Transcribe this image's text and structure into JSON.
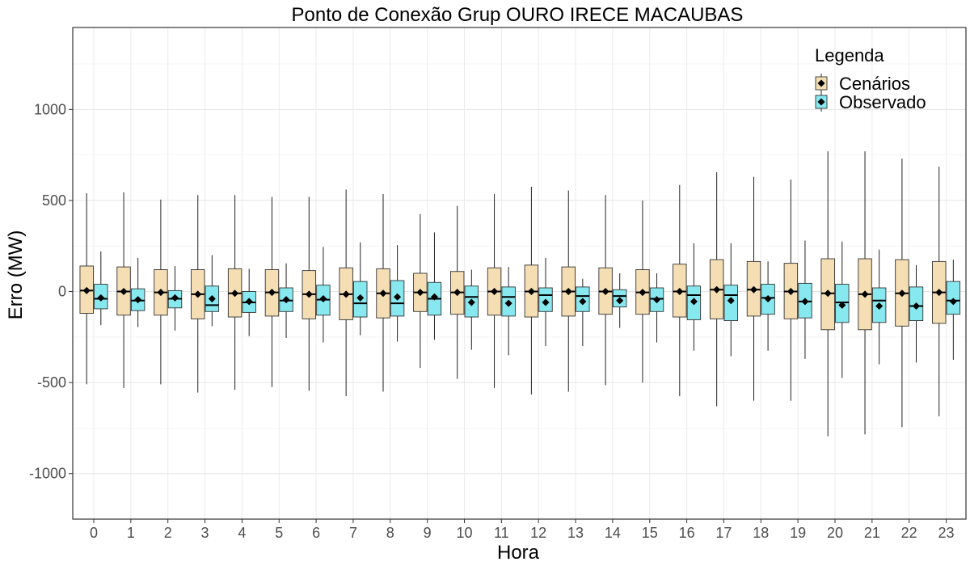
{
  "chart_data": {
    "type": "boxplot",
    "title": "Ponto de Conexão Grup OURO IRECE MACAUBAS",
    "xlabel": "Hora",
    "ylabel": "Erro (MW)",
    "ylim": [
      -1250,
      1450
    ],
    "yticks": [
      -1000,
      -500,
      0,
      500,
      1000
    ],
    "categories": [
      "0",
      "1",
      "2",
      "3",
      "4",
      "5",
      "6",
      "7",
      "8",
      "9",
      "10",
      "11",
      "12",
      "13",
      "14",
      "15",
      "16",
      "17",
      "18",
      "19",
      "20",
      "21",
      "22",
      "23"
    ],
    "grid": true,
    "legend": {
      "title": "Legenda",
      "position": "top-right",
      "entries": [
        "Cenários",
        "Observado"
      ]
    },
    "series": [
      {
        "name": "Cenários",
        "color": "#f5deb3",
        "boxes": [
          {
            "whisker_low": -510,
            "q1": -120,
            "median": 5,
            "q3": 140,
            "whisker_high": 540,
            "mean": 5
          },
          {
            "whisker_low": -530,
            "q1": -130,
            "median": 0,
            "q3": 135,
            "whisker_high": 545,
            "mean": 0
          },
          {
            "whisker_low": -510,
            "q1": -130,
            "median": -5,
            "q3": 120,
            "whisker_high": 505,
            "mean": -5
          },
          {
            "whisker_low": -555,
            "q1": -150,
            "median": -15,
            "q3": 120,
            "whisker_high": 530,
            "mean": -15
          },
          {
            "whisker_low": -540,
            "q1": -140,
            "median": -10,
            "q3": 125,
            "whisker_high": 530,
            "mean": -10
          },
          {
            "whisker_low": -525,
            "q1": -135,
            "median": -5,
            "q3": 120,
            "whisker_high": 520,
            "mean": -5
          },
          {
            "whisker_low": -545,
            "q1": -150,
            "median": -15,
            "q3": 115,
            "whisker_high": 520,
            "mean": -15
          },
          {
            "whisker_low": -575,
            "q1": -155,
            "median": -15,
            "q3": 130,
            "whisker_high": 560,
            "mean": -15
          },
          {
            "whisker_low": -550,
            "q1": -145,
            "median": -10,
            "q3": 125,
            "whisker_high": 535,
            "mean": -10
          },
          {
            "whisker_low": -420,
            "q1": -110,
            "median": -5,
            "q3": 100,
            "whisker_high": 425,
            "mean": -5
          },
          {
            "whisker_low": -480,
            "q1": -125,
            "median": -5,
            "q3": 110,
            "whisker_high": 470,
            "mean": -5
          },
          {
            "whisker_low": -530,
            "q1": -130,
            "median": 0,
            "q3": 130,
            "whisker_high": 535,
            "mean": 0
          },
          {
            "whisker_low": -565,
            "q1": -140,
            "median": 0,
            "q3": 145,
            "whisker_high": 575,
            "mean": 0
          },
          {
            "whisker_low": -550,
            "q1": -135,
            "median": 0,
            "q3": 135,
            "whisker_high": 555,
            "mean": 0
          },
          {
            "whisker_low": -515,
            "q1": -125,
            "median": 0,
            "q3": 130,
            "whisker_high": 530,
            "mean": 0
          },
          {
            "whisker_low": -500,
            "q1": -125,
            "median": -5,
            "q3": 120,
            "whisker_high": 500,
            "mean": -5
          },
          {
            "whisker_low": -575,
            "q1": -140,
            "median": 0,
            "q3": 150,
            "whisker_high": 585,
            "mean": 0
          },
          {
            "whisker_low": -630,
            "q1": -150,
            "median": 10,
            "q3": 175,
            "whisker_high": 655,
            "mean": 10
          },
          {
            "whisker_low": -600,
            "q1": -135,
            "median": 10,
            "q3": 165,
            "whisker_high": 630,
            "mean": 10
          },
          {
            "whisker_low": -600,
            "q1": -150,
            "median": 0,
            "q3": 155,
            "whisker_high": 615,
            "mean": 0
          },
          {
            "whisker_low": -795,
            "q1": -210,
            "median": -10,
            "q3": 180,
            "whisker_high": 770,
            "mean": -10
          },
          {
            "whisker_low": -785,
            "q1": -210,
            "median": -15,
            "q3": 180,
            "whisker_high": 770,
            "mean": -15
          },
          {
            "whisker_low": -745,
            "q1": -190,
            "median": -10,
            "q3": 175,
            "whisker_high": 730,
            "mean": -10
          },
          {
            "whisker_low": -685,
            "q1": -175,
            "median": -5,
            "q3": 165,
            "whisker_high": 685,
            "mean": -5
          }
        ]
      },
      {
        "name": "Observado",
        "color": "#87e8ef",
        "boxes": [
          {
            "whisker_low": -185,
            "q1": -95,
            "median": -40,
            "q3": 40,
            "whisker_high": 220,
            "mean": -35
          },
          {
            "whisker_low": -195,
            "q1": -105,
            "median": -50,
            "q3": 15,
            "whisker_high": 185,
            "mean": -45
          },
          {
            "whisker_low": -215,
            "q1": -90,
            "median": -40,
            "q3": 5,
            "whisker_high": 140,
            "mean": -35
          },
          {
            "whisker_low": -190,
            "q1": -110,
            "median": -75,
            "q3": 30,
            "whisker_high": 200,
            "mean": -40
          },
          {
            "whisker_low": -245,
            "q1": -115,
            "median": -60,
            "q3": 0,
            "whisker_high": 125,
            "mean": -55
          },
          {
            "whisker_low": -255,
            "q1": -110,
            "median": -50,
            "q3": 20,
            "whisker_high": 155,
            "mean": -45
          },
          {
            "whisker_low": -280,
            "q1": -130,
            "median": -45,
            "q3": 35,
            "whisker_high": 245,
            "mean": -40
          },
          {
            "whisker_low": -240,
            "q1": -140,
            "median": -65,
            "q3": 55,
            "whisker_high": 270,
            "mean": -35
          },
          {
            "whisker_low": -275,
            "q1": -135,
            "median": -65,
            "q3": 60,
            "whisker_high": 255,
            "mean": -30
          },
          {
            "whisker_low": -265,
            "q1": -130,
            "median": -40,
            "q3": 50,
            "whisker_high": 325,
            "mean": -30
          },
          {
            "whisker_low": -320,
            "q1": -140,
            "median": -30,
            "q3": 30,
            "whisker_high": 120,
            "mean": -60
          },
          {
            "whisker_low": -350,
            "q1": -135,
            "median": -30,
            "q3": 25,
            "whisker_high": 135,
            "mean": -65
          },
          {
            "whisker_low": -300,
            "q1": -110,
            "median": -20,
            "q3": 20,
            "whisker_high": 185,
            "mean": -60
          },
          {
            "whisker_low": -300,
            "q1": -110,
            "median": -25,
            "q3": 25,
            "whisker_high": 70,
            "mean": -55
          },
          {
            "whisker_low": -200,
            "q1": -85,
            "median": -25,
            "q3": 10,
            "whisker_high": 100,
            "mean": -50
          },
          {
            "whisker_low": -280,
            "q1": -110,
            "median": -40,
            "q3": 20,
            "whisker_high": 100,
            "mean": -45
          },
          {
            "whisker_low": -325,
            "q1": -155,
            "median": -20,
            "q3": 30,
            "whisker_high": 265,
            "mean": -55
          },
          {
            "whisker_low": -355,
            "q1": -160,
            "median": -20,
            "q3": 35,
            "whisker_high": 265,
            "mean": -50
          },
          {
            "whisker_low": -325,
            "q1": -125,
            "median": -35,
            "q3": 40,
            "whisker_high": 165,
            "mean": -40
          },
          {
            "whisker_low": -370,
            "q1": -145,
            "median": -55,
            "q3": 45,
            "whisker_high": 280,
            "mean": -55
          },
          {
            "whisker_low": -475,
            "q1": -170,
            "median": -60,
            "q3": 40,
            "whisker_high": 275,
            "mean": -75
          },
          {
            "whisker_low": -400,
            "q1": -170,
            "median": -50,
            "q3": 20,
            "whisker_high": 230,
            "mean": -80
          },
          {
            "whisker_low": -390,
            "q1": -160,
            "median": -80,
            "q3": 25,
            "whisker_high": 145,
            "mean": -80
          },
          {
            "whisker_low": -375,
            "q1": -125,
            "median": -50,
            "q3": 55,
            "whisker_high": 175,
            "mean": -55
          }
        ]
      }
    ]
  }
}
